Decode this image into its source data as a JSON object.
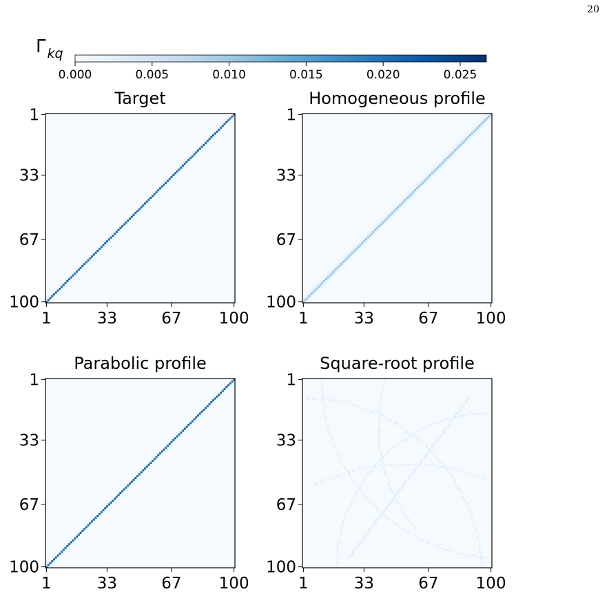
{
  "page_number": "20",
  "colorbar": {
    "label_base": "Γ",
    "label_sub": "kq",
    "ticks": [
      "0.000",
      "0.005",
      "0.010",
      "0.015",
      "0.020",
      "0.025"
    ],
    "tick_values": [
      0.0,
      0.005,
      0.01,
      0.015,
      0.02,
      0.025
    ],
    "range": [
      0.0,
      0.0267
    ],
    "colormap": [
      "#f7fbff",
      "#deebf7",
      "#c6dbef",
      "#9ecae1",
      "#6baed6",
      "#4292c6",
      "#2171b5",
      "#08519c",
      "#08306b"
    ]
  },
  "chart_data": [
    {
      "type": "heatmap",
      "title": "Target",
      "size": 100,
      "xticks": [
        "1",
        "33",
        "67",
        "100"
      ],
      "yticks": [
        "1",
        "33",
        "67",
        "100"
      ],
      "pattern": "diagonal",
      "background_value": 0.0003,
      "diagonal_value": 0.021,
      "diagonal_direction": "anti"
    },
    {
      "type": "heatmap",
      "title": "Homogeneous profile",
      "size": 100,
      "xticks": [
        "1",
        "33",
        "67",
        "100"
      ],
      "yticks": [
        "1",
        "33",
        "67",
        "100"
      ],
      "pattern": "diagonal-blurred",
      "background_value": 0.0003,
      "diagonal_value": 0.011,
      "diagonal_direction": "anti"
    },
    {
      "type": "heatmap",
      "title": "Parabolic profile",
      "size": 100,
      "xticks": [
        "1",
        "33",
        "67",
        "100"
      ],
      "yticks": [
        "1",
        "33",
        "67",
        "100"
      ],
      "pattern": "diagonal",
      "background_value": 0.0003,
      "diagonal_value": 0.021,
      "diagonal_direction": "anti"
    },
    {
      "type": "heatmap",
      "title": "Square-root profile",
      "size": 100,
      "xticks": [
        "1",
        "33",
        "67",
        "100"
      ],
      "yticks": [
        "1",
        "33",
        "67",
        "100"
      ],
      "pattern": "scattered-arcs",
      "background_value": 0.0003,
      "diagonal_value": 0.004
    }
  ]
}
